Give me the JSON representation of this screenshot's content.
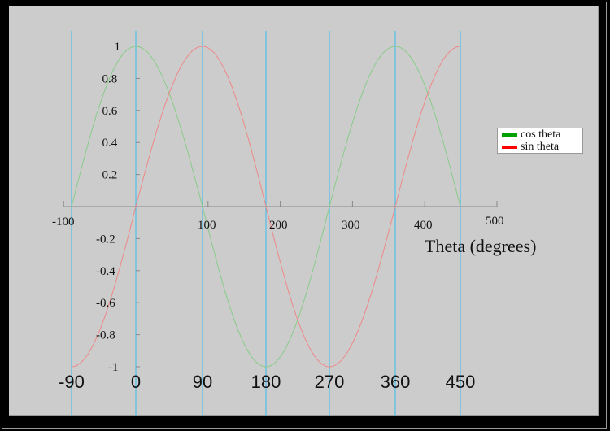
{
  "chart_data": {
    "type": "line",
    "title": "",
    "xlabel": "Theta (degrees)",
    "ylabel": "",
    "xlim": [
      -100,
      500
    ],
    "ylim": [
      -1,
      1
    ],
    "x_ticks": [
      -100,
      100,
      200,
      300,
      400,
      500
    ],
    "y_ticks": [
      1,
      0.8,
      0.6,
      0.4,
      0.2,
      -0.2,
      -0.4,
      -0.6,
      -0.8,
      -1
    ],
    "reference_lines": [
      -90,
      0,
      90,
      180,
      270,
      360,
      450
    ],
    "reference_labels": [
      "-90",
      "0",
      "90",
      "180",
      "270",
      "360",
      "450"
    ],
    "grid": false,
    "legend_position": "right",
    "series": [
      {
        "name": "cos theta",
        "color": "#00a000",
        "function": "cos",
        "x_range": [
          -90,
          450
        ],
        "x": [
          -90,
          0,
          90,
          180,
          270,
          360,
          450
        ],
        "values": [
          0,
          1,
          0,
          -1,
          0,
          1,
          0
        ]
      },
      {
        "name": "sin theta",
        "color": "#ff0000",
        "function": "sin",
        "x_range": [
          -90,
          450
        ],
        "x": [
          -90,
          0,
          90,
          180,
          270,
          360,
          450
        ],
        "values": [
          -1,
          0,
          1,
          0,
          -1,
          0,
          1
        ]
      }
    ]
  },
  "legend": {
    "items": [
      {
        "label": "cos theta",
        "color": "#00a000"
      },
      {
        "label": "sin theta",
        "color": "#ff0000"
      }
    ]
  },
  "colors": {
    "background": "#cccccc",
    "frame": "#000000",
    "reference_line": "#33bbee",
    "axis": "#888888",
    "cos_curve": "#88cc88",
    "sin_curve": "#ee8888"
  }
}
